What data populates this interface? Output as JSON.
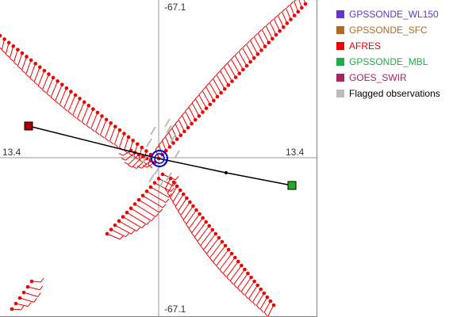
{
  "chart_data": {
    "type": "scatter",
    "axes": {
      "top_label": "-67.1",
      "bottom_label": "-67.1",
      "left_label": "13.4",
      "right_label": "13.4"
    },
    "legend": [
      {
        "name": "GPSSONDE_WL150",
        "color": "#6633cc"
      },
      {
        "name": "GPSSONDE_SFC",
        "color": "#b06a20"
      },
      {
        "name": "AFRES",
        "color": "#ee0000"
      },
      {
        "name": "GPSSONDE_MBL",
        "color": "#22aa44"
      },
      {
        "name": "GOES_SWIR",
        "color": "#aa2266"
      },
      {
        "name": "Flagged observations",
        "color": "#bbbbbb"
      }
    ],
    "track": {
      "color": "#000000",
      "start_marker_color": "#aa0000",
      "end_marker_color": "#22aa22"
    },
    "center_marker_color": "#0000cc",
    "vector_color": "#ee0000",
    "flagged_color": "#bbbbbb"
  }
}
